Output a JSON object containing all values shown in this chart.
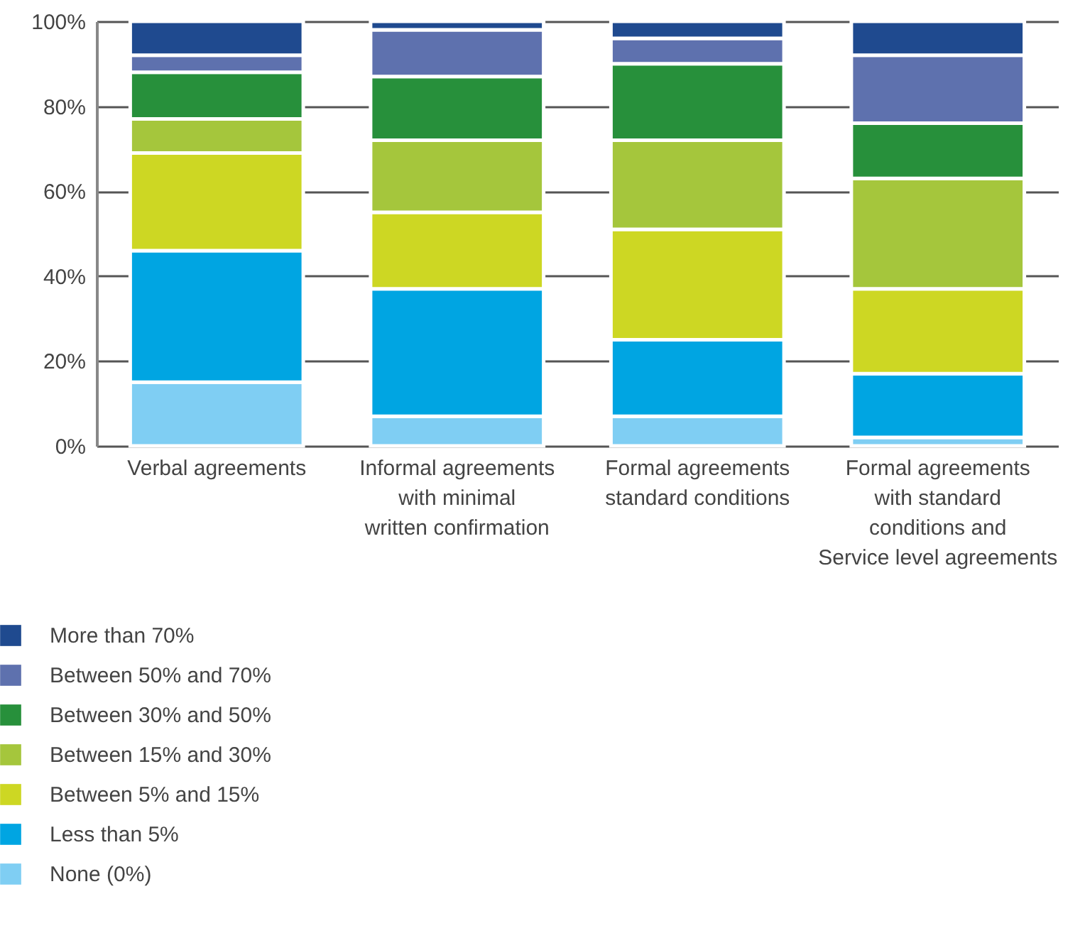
{
  "chart_data": {
    "type": "bar",
    "stacked": true,
    "categories": [
      "Verbal agreements",
      "Informal agreements\nwith minimal\nwritten confirmation",
      "Formal agreements\nstandard conditions",
      "Formal agreements\nwith standard\nconditions and\nService level agreements"
    ],
    "series": [
      {
        "name": "None (0%)",
        "color": "#7fcef3",
        "values": [
          15,
          7,
          7,
          2
        ]
      },
      {
        "name": "Less than 5%",
        "color": "#00a5e2",
        "values": [
          31,
          30,
          18,
          15
        ]
      },
      {
        "name": "Between 5% and 15%",
        "color": "#cdd723",
        "values": [
          23,
          18,
          26,
          20
        ]
      },
      {
        "name": "Between 15% and 30%",
        "color": "#a5c63c",
        "values": [
          8,
          17,
          21,
          26
        ]
      },
      {
        "name": "Between 30% and 50%",
        "color": "#27903b",
        "values": [
          11,
          15,
          18,
          13
        ]
      },
      {
        "name": "Between 50% and 70%",
        "color": "#5e71ae",
        "values": [
          4,
          11,
          6,
          16
        ]
      },
      {
        "name": "More than 70%",
        "color": "#1f4a8f",
        "values": [
          8,
          2,
          4,
          8
        ]
      }
    ],
    "ylim": [
      0,
      100
    ],
    "yticks": [
      {
        "value": 0,
        "label": "0%"
      },
      {
        "value": 20,
        "label": "20%"
      },
      {
        "value": 40,
        "label": "40%"
      },
      {
        "value": 60,
        "label": "60%"
      },
      {
        "value": 80,
        "label": "80%"
      },
      {
        "value": 100,
        "label": "100%"
      }
    ],
    "grid": "y",
    "legend": "bottom"
  }
}
